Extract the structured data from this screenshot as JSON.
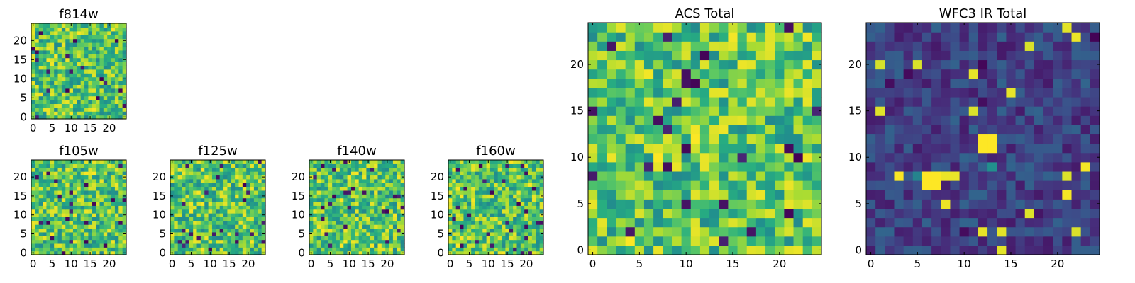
{
  "colors": {
    "colormap": "viridis",
    "viridis_low": "#440154",
    "viridis_mid": "#21918c",
    "viridis_high": "#fde725",
    "axis_frame": "#000000"
  },
  "chart_data": [
    {
      "type": "heatmap",
      "title": "f814w",
      "grid_size": 25,
      "xticks": [
        "0",
        "5",
        "10",
        "15",
        "20"
      ],
      "yticks": [
        "0",
        "5",
        "10",
        "15",
        "20"
      ],
      "xlim": [
        -0.5,
        24.5
      ],
      "ylim": [
        -0.5,
        24.5
      ],
      "color_level": {
        "min": 0.0,
        "max": 1.0,
        "typical": 0.72,
        "spread": 0.16
      }
    },
    {
      "type": "heatmap",
      "title": "f105w",
      "grid_size": 25,
      "xticks": [
        "0",
        "5",
        "10",
        "15",
        "20"
      ],
      "yticks": [
        "0",
        "5",
        "10",
        "15",
        "20"
      ],
      "xlim": [
        -0.5,
        24.5
      ],
      "ylim": [
        -0.5,
        24.5
      ],
      "color_level": {
        "min": 0.0,
        "max": 1.0,
        "typical": 0.72,
        "spread": 0.16
      }
    },
    {
      "type": "heatmap",
      "title": "f125w",
      "grid_size": 25,
      "xticks": [
        "0",
        "5",
        "10",
        "15",
        "20"
      ],
      "yticks": [
        "0",
        "5",
        "10",
        "15",
        "20"
      ],
      "xlim": [
        -0.5,
        24.5
      ],
      "ylim": [
        -0.5,
        24.5
      ],
      "color_level": {
        "min": 0.0,
        "max": 1.0,
        "typical": 0.72,
        "spread": 0.16
      }
    },
    {
      "type": "heatmap",
      "title": "f140w",
      "grid_size": 25,
      "xticks": [
        "0",
        "5",
        "10",
        "15",
        "20"
      ],
      "yticks": [
        "0",
        "5",
        "10",
        "15",
        "20"
      ],
      "xlim": [
        -0.5,
        24.5
      ],
      "ylim": [
        -0.5,
        24.5
      ],
      "color_level": {
        "min": 0.0,
        "max": 1.0,
        "typical": 0.72,
        "spread": 0.16
      }
    },
    {
      "type": "heatmap",
      "title": "f160w",
      "grid_size": 25,
      "xticks": [
        "0",
        "5",
        "10",
        "15",
        "20"
      ],
      "yticks": [
        "0",
        "5",
        "10",
        "15",
        "20"
      ],
      "xlim": [
        -0.5,
        24.5
      ],
      "ylim": [
        -0.5,
        24.5
      ],
      "color_level": {
        "min": 0.0,
        "max": 1.0,
        "typical": 0.72,
        "spread": 0.16
      }
    },
    {
      "type": "heatmap",
      "title": "ACS Total",
      "grid_size": 25,
      "xticks": [
        "0",
        "5",
        "10",
        "15",
        "20"
      ],
      "yticks": [
        "0",
        "5",
        "10",
        "15",
        "20"
      ],
      "xlim": [
        -0.5,
        24.5
      ],
      "ylim": [
        -0.5,
        24.5
      ],
      "color_level": {
        "min": 0.0,
        "max": 1.0,
        "typical": 0.72,
        "spread": 0.16
      }
    },
    {
      "type": "heatmap",
      "title": "WFC3 IR Total",
      "grid_size": 25,
      "xticks": [
        "0",
        "5",
        "10",
        "15",
        "20"
      ],
      "yticks": [
        "0",
        "5",
        "10",
        "15",
        "20"
      ],
      "xlim": [
        -0.5,
        24.5
      ],
      "ylim": [
        -0.5,
        24.5
      ],
      "color_level": {
        "min": 0.0,
        "max": 1.0,
        "typical": 0.2,
        "spread": 0.08
      },
      "bright_spots": [
        {
          "x": [
            12,
            13
          ],
          "y": [
            11,
            12
          ],
          "value": 1.0
        },
        {
          "x": [
            6,
            7
          ],
          "y": [
            7,
            8
          ],
          "value": 1.0
        },
        {
          "x": [
            5,
            5
          ],
          "y": [
            8,
            8
          ],
          "value": 0.45
        },
        {
          "x": [
            13,
            13
          ],
          "y": [
            9,
            9
          ],
          "value": 0.5
        }
      ]
    }
  ]
}
